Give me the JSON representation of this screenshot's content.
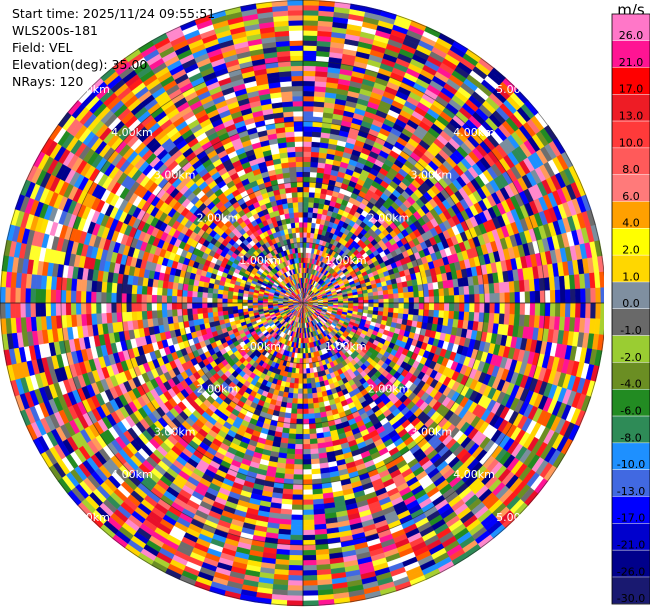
{
  "info": {
    "start_time": "Start time: 2025/11/24 09:55:51",
    "station": "WLS200s-181",
    "field": "Field: VEL",
    "elevation": "Elevation(deg): 35.00",
    "nrays": "NRays: 120"
  },
  "chart_data": {
    "type": "heatmap",
    "title": "",
    "range_ring_labels": [
      "1.00km",
      "2.00km",
      "3.00km",
      "4.00km",
      "5.00km"
    ],
    "nrays": 120,
    "colorbar": {
      "unit": "m/s",
      "ticks": [
        "26.0",
        "21.0",
        "17.0",
        "13.0",
        "10.0",
        "8.0",
        "6.0",
        "4.0",
        "2.0",
        "1.0",
        "0.0",
        "-1.0",
        "-2.0",
        "-4.0",
        "-6.0",
        "-8.0",
        "-10.0",
        "-13.0",
        "-17.0",
        "-21.0",
        "-26.0",
        "-30.0"
      ],
      "colors": [
        "#ff88cc",
        "#ff1493",
        "#ff1a1a",
        "#e8102a",
        "#ff3c3c",
        "#ff5a00",
        "#ff6e6e",
        "#ff9a5a",
        "#ffa000",
        "#ffd400",
        "#ffff2a",
        "#ffe100",
        "#7a8e9e",
        "#6e6e6e",
        "#a8d030",
        "#6b8e23",
        "#228b22",
        "#2e8b57",
        "#1e90ff",
        "#4169e1",
        "#0000ff",
        "#0000cd",
        "#00008b",
        "#191970"
      ]
    }
  }
}
